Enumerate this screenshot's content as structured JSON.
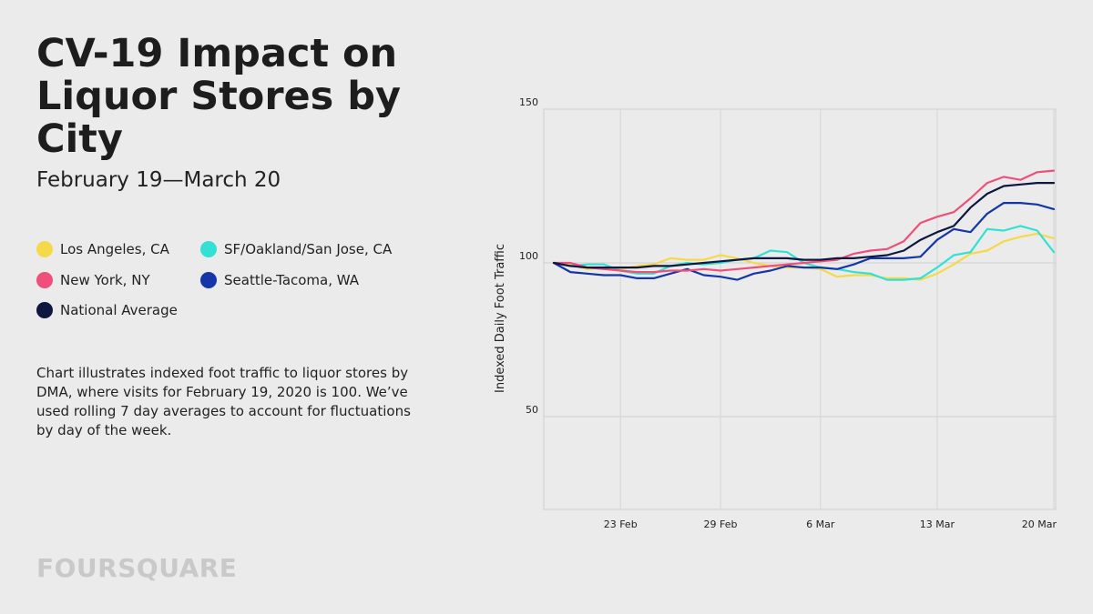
{
  "header": {
    "title": "CV-19 Impact on Liquor Stores by City",
    "subtitle": "February 19—March 20"
  },
  "description": "Chart illustrates indexed foot traffic to liquor stores by DMA, where visits for February 19, 2020 is 100. We’ve used rolling 7 day averages to account for fluctuations by day of the week.",
  "brand": "FOURSQUARE",
  "chart_data": {
    "type": "line",
    "ylabel": "Indexed Daily Foot Traffic",
    "xlabel": "",
    "ylim": [
      0,
      150
    ],
    "yticks": [
      50,
      100,
      150
    ],
    "xlim": [
      "2020-02-19",
      "2020-03-20"
    ],
    "xticks": [
      {
        "date": "2020-02-23",
        "label": "23 Feb"
      },
      {
        "date": "2020-02-29",
        "label": "29 Feb"
      },
      {
        "date": "2020-03-06",
        "label": "6 Mar"
      },
      {
        "date": "2020-03-13",
        "label": "13 Mar"
      },
      {
        "date": "2020-03-20",
        "label": "20 Mar"
      }
    ],
    "grid": true,
    "x": [
      "2020-02-19",
      "2020-02-20",
      "2020-02-21",
      "2020-02-22",
      "2020-02-23",
      "2020-02-24",
      "2020-02-25",
      "2020-02-26",
      "2020-02-27",
      "2020-02-28",
      "2020-02-29",
      "2020-03-01",
      "2020-03-02",
      "2020-03-03",
      "2020-03-04",
      "2020-03-05",
      "2020-03-06",
      "2020-03-07",
      "2020-03-08",
      "2020-03-09",
      "2020-03-10",
      "2020-03-11",
      "2020-03-12",
      "2020-03-13",
      "2020-03-14",
      "2020-03-15",
      "2020-03-16",
      "2020-03-17",
      "2020-03-18",
      "2020-03-19",
      "2020-03-20"
    ],
    "series": [
      {
        "name": "Los Angeles, CA",
        "color": "#f5d94a",
        "values": [
          100,
          99.5,
          98,
          98.5,
          98,
          99,
          99.5,
          101.5,
          101,
          101,
          102.5,
          101.5,
          100,
          99,
          98.5,
          98.5,
          98,
          95.5,
          96,
          96,
          95,
          95,
          94.5,
          96.5,
          99.5,
          103,
          104,
          107,
          108.5,
          109.5,
          108
        ]
      },
      {
        "name": "New York, NY",
        "color": "#ef4f7a",
        "values": [
          100,
          100,
          98.5,
          98,
          97.5,
          97,
          97,
          97.5,
          97.5,
          98,
          97.5,
          98,
          98.5,
          99,
          99.5,
          100,
          100.5,
          101,
          103,
          104,
          104.5,
          107,
          113,
          115,
          116.5,
          121,
          126,
          128,
          127,
          129.5,
          130
        ]
      },
      {
        "name": "National Average",
        "color": "#0d1740",
        "values": [
          100,
          99,
          98.5,
          98.5,
          98.5,
          98.5,
          99,
          99,
          99.5,
          100,
          100.5,
          101,
          101.5,
          101.5,
          101.5,
          101,
          101,
          101.5,
          101.5,
          102,
          102.5,
          104,
          107.5,
          110,
          112,
          118,
          122.5,
          125,
          125.5,
          126,
          126
        ]
      },
      {
        "name": "SF/Oakland/San Jose, CA",
        "color": "#33e1d4",
        "values": [
          100,
          99,
          99.5,
          99.5,
          97.5,
          96.5,
          96.5,
          99,
          100,
          99.5,
          100,
          101,
          101.5,
          104,
          103.5,
          100,
          98.5,
          98,
          97,
          96.5,
          94.5,
          94.5,
          95,
          98.5,
          102.5,
          103.5,
          111,
          110.5,
          112,
          110.5,
          103.5
        ]
      },
      {
        "name": "Seattle-Tacoma, WA",
        "color": "#1436a8",
        "values": [
          100,
          97,
          96.5,
          96,
          96,
          95,
          95,
          96.5,
          98,
          96,
          95.5,
          94.5,
          96.5,
          97.5,
          99,
          98.5,
          98.5,
          98,
          99.5,
          101.5,
          101.5,
          101.5,
          102,
          107.5,
          111,
          110,
          116,
          119.5,
          119.5,
          119,
          117.5
        ]
      }
    ]
  }
}
